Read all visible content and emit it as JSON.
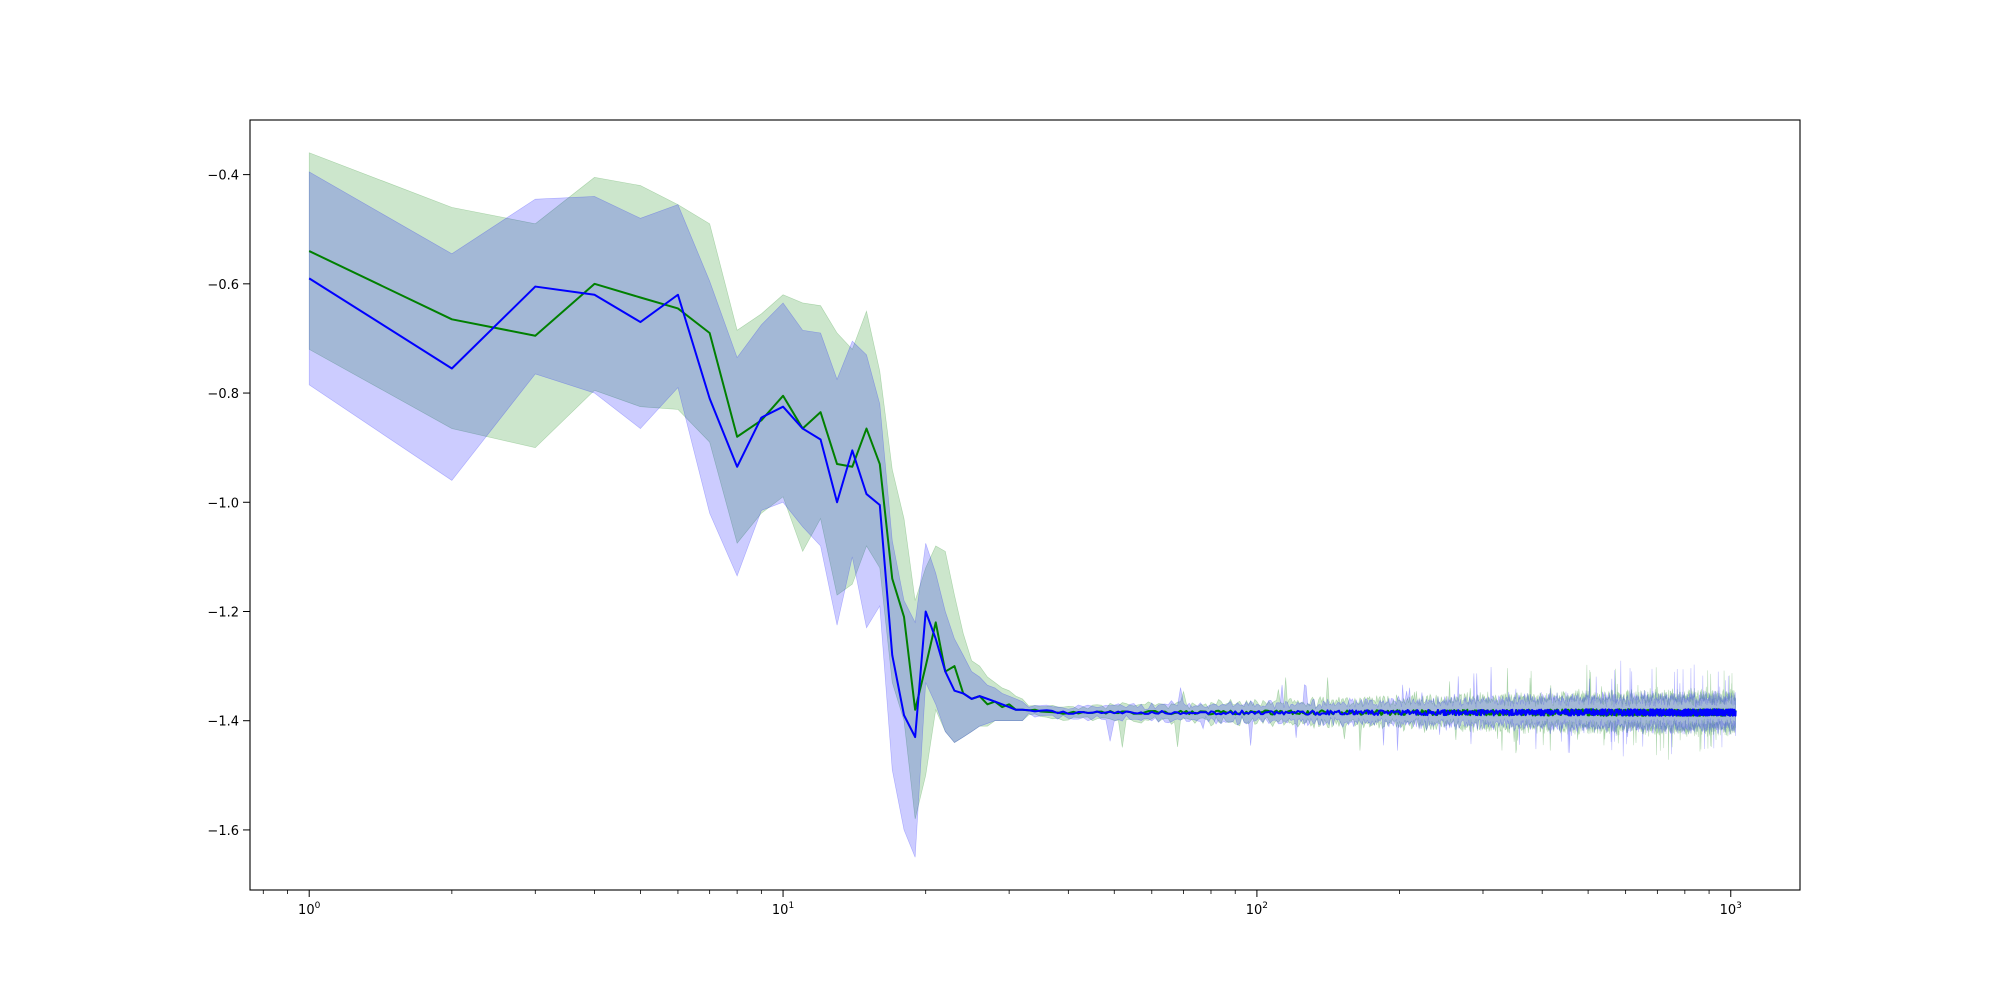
{
  "chart_data": {
    "type": "line",
    "title": "",
    "xlabel": "",
    "ylabel": "",
    "x_scale": "log",
    "xlim": [
      0.75,
      1400
    ],
    "ylim": [
      -1.71,
      -0.3
    ],
    "x_ticks": [
      {
        "value": 1,
        "base": "10",
        "exp": "0"
      },
      {
        "value": 10,
        "base": "10",
        "exp": "1"
      },
      {
        "value": 100,
        "base": "10",
        "exp": "2"
      },
      {
        "value": 1000,
        "base": "10",
        "exp": "3"
      }
    ],
    "y_ticks": [
      {
        "value": -0.4,
        "label": "−0.4"
      },
      {
        "value": -0.6,
        "label": "−0.6"
      },
      {
        "value": -0.8,
        "label": "−0.8"
      },
      {
        "value": -1.0,
        "label": "−1.0"
      },
      {
        "value": -1.2,
        "label": "−1.2"
      },
      {
        "value": -1.4,
        "label": "−1.4"
      },
      {
        "value": -1.6,
        "label": "−1.6"
      }
    ],
    "grid": false,
    "legend": "none",
    "tail": {
      "x_from": 33,
      "x_to": 1024,
      "mean": -1.385
    },
    "series": [
      {
        "color": "#008000",
        "band_color": "#008000",
        "band_opacity": 0.2,
        "x": [
          1,
          2,
          3,
          4,
          5,
          6,
          7,
          8,
          9,
          10,
          11,
          12,
          13,
          14,
          15,
          16,
          17,
          18,
          19,
          20,
          21,
          22,
          23,
          24,
          25,
          26,
          27,
          28,
          29,
          30,
          31,
          32
        ],
        "y": [
          -0.54,
          -0.665,
          -0.695,
          -0.6,
          -0.625,
          -0.645,
          -0.69,
          -0.88,
          -0.85,
          -0.805,
          -0.865,
          -0.835,
          -0.93,
          -0.935,
          -0.865,
          -0.93,
          -1.14,
          -1.21,
          -1.38,
          -1.3,
          -1.22,
          -1.31,
          -1.3,
          -1.35,
          -1.36,
          -1.355,
          -1.37,
          -1.365,
          -1.375,
          -1.37,
          -1.38,
          -1.38
        ],
        "upper": [
          -0.36,
          -0.46,
          -0.49,
          -0.405,
          -0.42,
          -0.455,
          -0.49,
          -0.685,
          -0.655,
          -0.62,
          -0.635,
          -0.64,
          -0.69,
          -0.72,
          -0.65,
          -0.76,
          -0.94,
          -1.03,
          -1.18,
          -1.12,
          -1.08,
          -1.09,
          -1.17,
          -1.24,
          -1.29,
          -1.3,
          -1.32,
          -1.33,
          -1.34,
          -1.345,
          -1.355,
          -1.36
        ],
        "lower": [
          -0.72,
          -0.865,
          -0.9,
          -0.795,
          -0.825,
          -0.83,
          -0.89,
          -1.075,
          -1.02,
          -0.99,
          -1.09,
          -1.03,
          -1.17,
          -1.15,
          -1.08,
          -1.12,
          -1.33,
          -1.4,
          -1.58,
          -1.5,
          -1.38,
          -1.42,
          -1.44,
          -1.43,
          -1.42,
          -1.41,
          -1.41,
          -1.4,
          -1.4,
          -1.4,
          -1.4,
          -1.4
        ],
        "tail_band": 0.028
      },
      {
        "color": "#0000ff",
        "band_color": "#0000ff",
        "band_opacity": 0.2,
        "x": [
          1,
          2,
          3,
          4,
          5,
          6,
          7,
          8,
          9,
          10,
          11,
          12,
          13,
          14,
          15,
          16,
          17,
          18,
          19,
          20,
          21,
          22,
          23,
          24,
          25,
          26,
          27,
          28,
          29,
          30,
          31,
          32
        ],
        "y": [
          -0.59,
          -0.755,
          -0.605,
          -0.62,
          -0.67,
          -0.62,
          -0.81,
          -0.935,
          -0.845,
          -0.825,
          -0.865,
          -0.885,
          -1.0,
          -0.905,
          -0.985,
          -1.005,
          -1.28,
          -1.39,
          -1.43,
          -1.2,
          -1.25,
          -1.31,
          -1.345,
          -1.35,
          -1.36,
          -1.355,
          -1.36,
          -1.365,
          -1.37,
          -1.375,
          -1.38,
          -1.38
        ],
        "upper": [
          -0.395,
          -0.545,
          -0.445,
          -0.44,
          -0.48,
          -0.455,
          -0.595,
          -0.735,
          -0.675,
          -0.635,
          -0.685,
          -0.69,
          -0.775,
          -0.705,
          -0.73,
          -0.82,
          -1.07,
          -1.18,
          -1.22,
          -1.075,
          -1.13,
          -1.2,
          -1.25,
          -1.28,
          -1.31,
          -1.32,
          -1.335,
          -1.34,
          -1.35,
          -1.355,
          -1.36,
          -1.365
        ],
        "lower": [
          -0.785,
          -0.96,
          -0.765,
          -0.8,
          -0.865,
          -0.79,
          -1.02,
          -1.135,
          -1.015,
          -1.0,
          -1.045,
          -1.08,
          -1.225,
          -1.1,
          -1.23,
          -1.19,
          -1.49,
          -1.6,
          -1.65,
          -1.33,
          -1.37,
          -1.42,
          -1.44,
          -1.43,
          -1.42,
          -1.41,
          -1.405,
          -1.4,
          -1.4,
          -1.4,
          -1.4,
          -1.4
        ],
        "tail_band": 0.025
      }
    ]
  }
}
